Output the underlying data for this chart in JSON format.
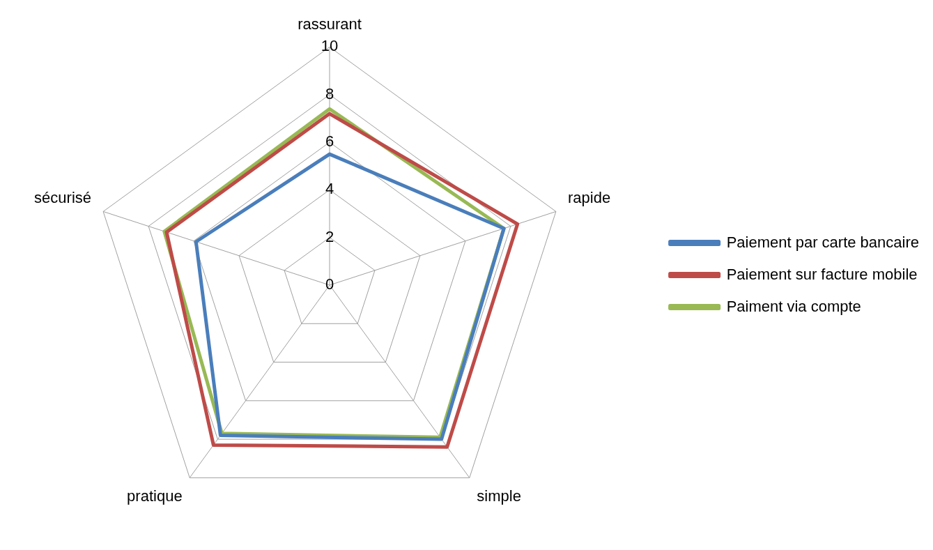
{
  "chart_data": {
    "type": "radar",
    "categories": [
      "rassurant",
      "rapide",
      "simple",
      "pratique",
      "sécurisé"
    ],
    "series": [
      {
        "name": "Paiement par carte bancaire",
        "color": "#4a7ebb",
        "values": [
          5.5,
          7.7,
          8.0,
          7.8,
          5.9
        ]
      },
      {
        "name": "Paiement sur facture mobile",
        "color": "#be4b48",
        "values": [
          7.2,
          8.3,
          8.4,
          8.3,
          7.2
        ]
      },
      {
        "name": "Paiment via compte",
        "color": "#98b954",
        "values": [
          7.4,
          7.7,
          7.9,
          7.7,
          7.3
        ]
      }
    ],
    "ylim": [
      0,
      10
    ],
    "yticks": [
      0,
      2,
      4,
      6,
      8,
      10
    ],
    "grid": true,
    "legend": "right",
    "marker": "none",
    "line_style": "solid"
  }
}
